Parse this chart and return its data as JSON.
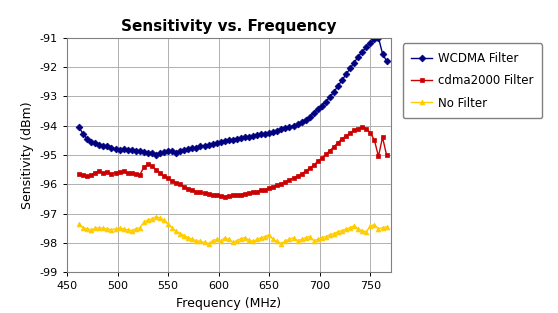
{
  "title": "Sensitivity vs. Frequency",
  "xlabel": "Frequency (MHz)",
  "ylabel": "Sensitivity (dBm)",
  "xlim": [
    450,
    770
  ],
  "ylim": [
    -99,
    -91
  ],
  "yticks": [
    -99,
    -98,
    -97,
    -96,
    -95,
    -94,
    -93,
    -92,
    -91
  ],
  "xticks": [
    450,
    500,
    550,
    600,
    650,
    700,
    750
  ],
  "background_color": "#ffffff",
  "grid_color": "#b0b0b0",
  "wcdma": {
    "label": "WCDMA Filter",
    "color": "#000080",
    "marker": "D",
    "markersize": 3.5,
    "freq": [
      462,
      466,
      470,
      474,
      478,
      482,
      486,
      490,
      494,
      498,
      502,
      506,
      510,
      514,
      518,
      522,
      526,
      530,
      534,
      538,
      542,
      546,
      550,
      554,
      558,
      562,
      566,
      570,
      574,
      578,
      582,
      586,
      590,
      594,
      598,
      602,
      606,
      610,
      614,
      618,
      622,
      626,
      630,
      634,
      638,
      642,
      646,
      650,
      654,
      658,
      662,
      666,
      670,
      674,
      678,
      682,
      686,
      690,
      694,
      698,
      702,
      706,
      710,
      714,
      718,
      722,
      726,
      730,
      734,
      738,
      742,
      746,
      750,
      754,
      758,
      762,
      766
    ],
    "sens": [
      -94.05,
      -94.3,
      -94.45,
      -94.55,
      -94.6,
      -94.65,
      -94.7,
      -94.7,
      -94.75,
      -94.8,
      -94.82,
      -94.8,
      -94.82,
      -94.82,
      -94.85,
      -94.88,
      -94.9,
      -94.92,
      -94.95,
      -95.0,
      -94.95,
      -94.9,
      -94.85,
      -94.88,
      -94.95,
      -94.88,
      -94.82,
      -94.8,
      -94.78,
      -94.75,
      -94.7,
      -94.68,
      -94.65,
      -94.62,
      -94.6,
      -94.55,
      -94.52,
      -94.5,
      -94.48,
      -94.45,
      -94.42,
      -94.4,
      -94.38,
      -94.35,
      -94.32,
      -94.3,
      -94.28,
      -94.25,
      -94.22,
      -94.18,
      -94.12,
      -94.08,
      -94.05,
      -94.0,
      -93.95,
      -93.88,
      -93.8,
      -93.7,
      -93.58,
      -93.45,
      -93.32,
      -93.18,
      -93.02,
      -92.85,
      -92.65,
      -92.45,
      -92.25,
      -92.05,
      -91.85,
      -91.65,
      -91.48,
      -91.32,
      -91.18,
      -91.05,
      -91.0,
      -91.55,
      -91.8
    ]
  },
  "cdma": {
    "label": "cdma2000 Filter",
    "color": "#cc0000",
    "marker": "s",
    "markersize": 3.5,
    "freq": [
      462,
      466,
      470,
      474,
      478,
      482,
      486,
      490,
      494,
      498,
      502,
      506,
      510,
      514,
      518,
      522,
      526,
      530,
      534,
      538,
      542,
      546,
      550,
      554,
      558,
      562,
      566,
      570,
      574,
      578,
      582,
      586,
      590,
      594,
      598,
      602,
      606,
      610,
      614,
      618,
      622,
      626,
      630,
      634,
      638,
      642,
      646,
      650,
      654,
      658,
      662,
      666,
      670,
      674,
      678,
      682,
      686,
      690,
      694,
      698,
      702,
      706,
      710,
      714,
      718,
      722,
      726,
      730,
      734,
      738,
      742,
      746,
      750,
      754,
      758,
      762,
      766
    ],
    "sens": [
      -95.65,
      -95.7,
      -95.72,
      -95.68,
      -95.6,
      -95.55,
      -95.62,
      -95.58,
      -95.65,
      -95.6,
      -95.58,
      -95.55,
      -95.6,
      -95.62,
      -95.65,
      -95.68,
      -95.42,
      -95.32,
      -95.38,
      -95.5,
      -95.62,
      -95.72,
      -95.8,
      -95.88,
      -95.95,
      -96.0,
      -96.08,
      -96.15,
      -96.2,
      -96.25,
      -96.28,
      -96.3,
      -96.32,
      -96.38,
      -96.38,
      -96.4,
      -96.42,
      -96.4,
      -96.38,
      -96.38,
      -96.35,
      -96.32,
      -96.3,
      -96.28,
      -96.25,
      -96.2,
      -96.18,
      -96.12,
      -96.08,
      -96.02,
      -95.98,
      -95.92,
      -95.85,
      -95.78,
      -95.72,
      -95.65,
      -95.55,
      -95.45,
      -95.35,
      -95.22,
      -95.1,
      -94.98,
      -94.85,
      -94.72,
      -94.58,
      -94.45,
      -94.35,
      -94.25,
      -94.15,
      -94.1,
      -94.05,
      -94.1,
      -94.25,
      -94.5,
      -95.05,
      -94.4,
      -95.0
    ]
  },
  "nofilter": {
    "label": "No Filter",
    "color": "#ffcc00",
    "marker": "^",
    "markersize": 3.5,
    "freq": [
      462,
      466,
      470,
      474,
      478,
      482,
      486,
      490,
      494,
      498,
      502,
      506,
      510,
      514,
      518,
      522,
      526,
      530,
      534,
      538,
      542,
      546,
      550,
      554,
      558,
      562,
      566,
      570,
      574,
      578,
      582,
      586,
      590,
      594,
      598,
      602,
      606,
      610,
      614,
      618,
      622,
      626,
      630,
      634,
      638,
      642,
      646,
      650,
      654,
      658,
      662,
      666,
      670,
      674,
      678,
      682,
      686,
      690,
      694,
      698,
      702,
      706,
      710,
      714,
      718,
      722,
      726,
      730,
      734,
      738,
      742,
      746,
      750,
      754,
      758,
      762,
      766
    ],
    "sens": [
      -97.35,
      -97.48,
      -97.52,
      -97.55,
      -97.5,
      -97.48,
      -97.5,
      -97.52,
      -97.55,
      -97.52,
      -97.5,
      -97.52,
      -97.55,
      -97.58,
      -97.52,
      -97.48,
      -97.3,
      -97.22,
      -97.18,
      -97.1,
      -97.15,
      -97.22,
      -97.35,
      -97.48,
      -97.6,
      -97.68,
      -97.75,
      -97.82,
      -97.88,
      -97.92,
      -97.95,
      -97.98,
      -98.02,
      -97.92,
      -97.88,
      -97.95,
      -97.82,
      -97.88,
      -97.98,
      -97.92,
      -97.85,
      -97.82,
      -97.9,
      -97.95,
      -97.88,
      -97.82,
      -97.78,
      -97.72,
      -97.88,
      -97.95,
      -98.02,
      -97.92,
      -97.88,
      -97.82,
      -97.92,
      -97.88,
      -97.82,
      -97.78,
      -97.92,
      -97.88,
      -97.82,
      -97.78,
      -97.72,
      -97.68,
      -97.62,
      -97.58,
      -97.52,
      -97.48,
      -97.42,
      -97.52,
      -97.58,
      -97.62,
      -97.42,
      -97.38,
      -97.52,
      -97.48,
      -97.45
    ]
  },
  "legend_box_color": "#ffffff",
  "legend_edge_color": "#808080"
}
